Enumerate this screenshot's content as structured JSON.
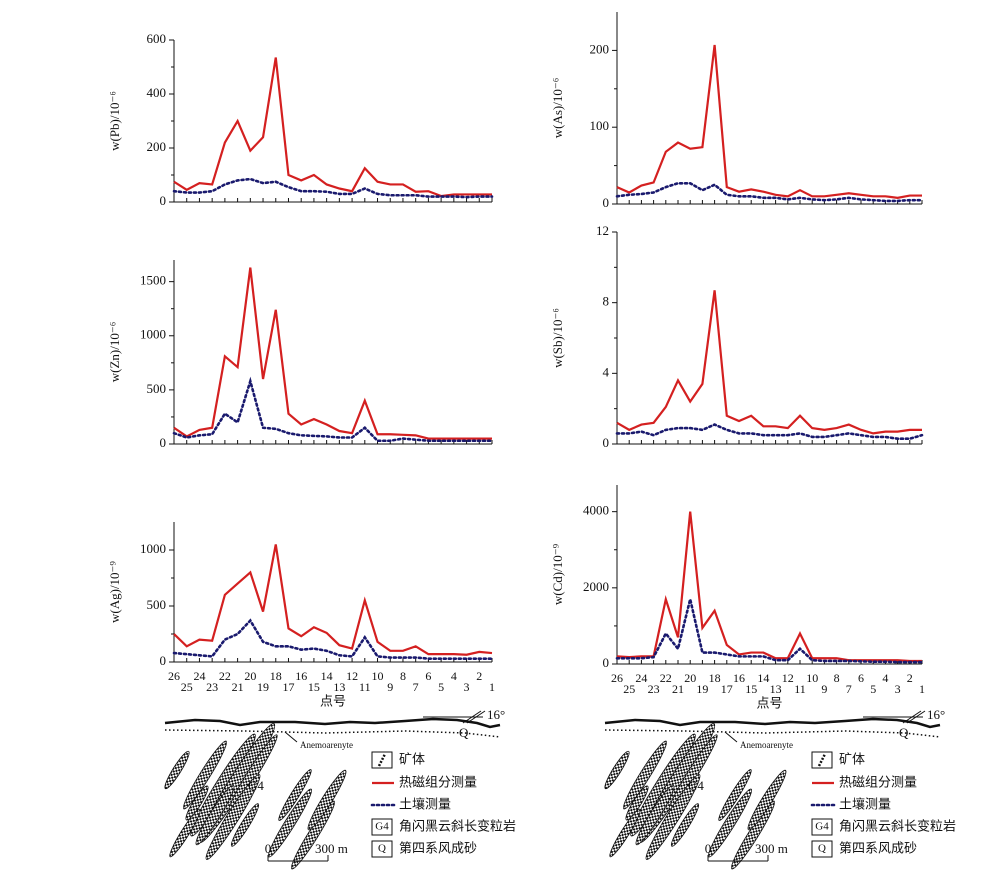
{
  "chart_data": [
    {
      "type": "line",
      "ylabel": "w(Pb)/10⁻⁶",
      "ylim": [
        0,
        600
      ],
      "yticks": [
        0,
        200,
        400,
        600
      ],
      "series": [
        {
          "name": "热磁组分测量",
          "color": "#d42020",
          "line_style": "solid",
          "values": [
            75,
            45,
            70,
            65,
            220,
            300,
            190,
            240,
            535,
            100,
            80,
            100,
            65,
            50,
            40,
            125,
            75,
            65,
            65,
            38,
            40,
            22,
            28,
            28,
            28,
            28
          ]
        },
        {
          "name": "土壤测量",
          "color": "#1a1a6e",
          "line_style": "dotted",
          "values": [
            40,
            35,
            35,
            40,
            65,
            80,
            85,
            70,
            75,
            55,
            40,
            40,
            38,
            30,
            30,
            50,
            30,
            25,
            25,
            25,
            20,
            20,
            20,
            18,
            20,
            20
          ]
        }
      ]
    },
    {
      "type": "line",
      "ylabel": "w(As)/10⁻⁶",
      "ylim": [
        0,
        250
      ],
      "yticks": [
        0,
        100,
        200
      ],
      "series": [
        {
          "name": "热磁组分测量",
          "color": "#d42020",
          "line_style": "solid",
          "values": [
            22,
            15,
            24,
            28,
            68,
            80,
            72,
            74,
            207,
            22,
            16,
            19,
            16,
            12,
            10,
            18,
            10,
            10,
            12,
            14,
            12,
            10,
            10,
            8,
            11,
            11
          ]
        },
        {
          "name": "土壤测量",
          "color": "#1a1a6e",
          "line_style": "dotted",
          "values": [
            10,
            12,
            13,
            15,
            22,
            27,
            27,
            18,
            25,
            12,
            10,
            10,
            8,
            8,
            6,
            8,
            6,
            5,
            6,
            8,
            6,
            5,
            4,
            4,
            5,
            5
          ]
        }
      ]
    },
    {
      "type": "line",
      "ylabel": "w(Zn)/10⁻⁶",
      "ylim": [
        0,
        1700
      ],
      "yticks": [
        0,
        500,
        1000,
        1500
      ],
      "series": [
        {
          "name": "热磁组分测量",
          "color": "#d42020",
          "line_style": "solid",
          "values": [
            150,
            70,
            130,
            150,
            810,
            710,
            1630,
            600,
            1240,
            280,
            180,
            230,
            180,
            120,
            100,
            400,
            90,
            90,
            85,
            80,
            50,
            50,
            50,
            50,
            50,
            50
          ]
        },
        {
          "name": "土壤测量",
          "color": "#1a1a6e",
          "line_style": "dotted",
          "values": [
            100,
            60,
            80,
            90,
            280,
            200,
            580,
            150,
            140,
            100,
            80,
            75,
            70,
            60,
            60,
            150,
            30,
            30,
            50,
            40,
            30,
            30,
            30,
            30,
            30,
            30
          ]
        }
      ]
    },
    {
      "type": "line",
      "ylabel": "w(Sb)/10⁻⁶",
      "ylim": [
        0,
        12
      ],
      "yticks": [
        0,
        4,
        8,
        12
      ],
      "series": [
        {
          "name": "热磁组分测量",
          "color": "#d42020",
          "line_style": "solid",
          "values": [
            1.2,
            0.8,
            1.1,
            1.2,
            2.1,
            3.6,
            2.4,
            3.4,
            8.7,
            1.6,
            1.3,
            1.6,
            1.0,
            1.0,
            0.9,
            1.6,
            0.9,
            0.8,
            0.9,
            1.1,
            0.8,
            0.6,
            0.7,
            0.7,
            0.8,
            0.8
          ]
        },
        {
          "name": "土壤测量",
          "color": "#1a1a6e",
          "line_style": "dotted",
          "values": [
            0.6,
            0.6,
            0.7,
            0.5,
            0.8,
            0.9,
            0.9,
            0.8,
            1.1,
            0.8,
            0.6,
            0.6,
            0.5,
            0.5,
            0.5,
            0.6,
            0.4,
            0.4,
            0.5,
            0.6,
            0.5,
            0.4,
            0.4,
            0.3,
            0.3,
            0.5
          ]
        }
      ]
    },
    {
      "type": "line",
      "ylabel": "w(Ag)/10⁻⁹",
      "xlabel": "点号",
      "ylim": [
        0,
        1250
      ],
      "yticks": [
        0,
        500,
        1000
      ],
      "categories": [
        "26",
        "25",
        "24",
        "23",
        "22",
        "21",
        "20",
        "19",
        "18",
        "17",
        "16",
        "15",
        "14",
        "13",
        "12",
        "11",
        "10",
        "9",
        "8",
        "7",
        "6",
        "5",
        "4",
        "3",
        "2",
        "1"
      ],
      "series": [
        {
          "name": "热磁组分测量",
          "color": "#d42020",
          "line_style": "solid",
          "values": [
            250,
            140,
            200,
            190,
            600,
            700,
            800,
            450,
            1050,
            300,
            230,
            310,
            260,
            150,
            120,
            550,
            180,
            100,
            100,
            140,
            70,
            70,
            70,
            65,
            90,
            80
          ]
        },
        {
          "name": "土壤测量",
          "color": "#1a1a6e",
          "line_style": "dotted",
          "values": [
            80,
            70,
            60,
            50,
            200,
            250,
            370,
            180,
            140,
            140,
            110,
            120,
            100,
            60,
            50,
            220,
            50,
            40,
            40,
            40,
            30,
            30,
            30,
            30,
            30,
            30
          ]
        }
      ]
    },
    {
      "type": "line",
      "ylabel": "w(Cd)/10⁻⁹",
      "xlabel": "点号",
      "ylim": [
        0,
        4700
      ],
      "yticks": [
        0,
        2000,
        4000
      ],
      "categories": [
        "26",
        "25",
        "24",
        "23",
        "22",
        "21",
        "20",
        "19",
        "18",
        "17",
        "16",
        "15",
        "14",
        "13",
        "12",
        "11",
        "10",
        "9",
        "8",
        "7",
        "6",
        "5",
        "4",
        "3",
        "2",
        "1"
      ],
      "series": [
        {
          "name": "热磁组分测量",
          "color": "#d42020",
          "line_style": "solid",
          "values": [
            200,
            180,
            200,
            200,
            1700,
            700,
            4000,
            950,
            1400,
            500,
            250,
            300,
            300,
            150,
            150,
            800,
            150,
            150,
            150,
            100,
            100,
            100,
            100,
            100,
            80,
            80
          ]
        },
        {
          "name": "土壤测量",
          "color": "#1a1a6e",
          "line_style": "dotted",
          "values": [
            150,
            150,
            150,
            180,
            800,
            400,
            1700,
            300,
            300,
            250,
            200,
            200,
            200,
            100,
            100,
            400,
            100,
            80,
            80,
            80,
            70,
            60,
            60,
            50,
            50,
            50
          ]
        }
      ]
    }
  ],
  "sketch": {
    "dip": "16°",
    "formation": "Anemoarenyte",
    "rock_code": "G4",
    "q_code": "Q",
    "scale_zero": "0",
    "scale_length": "300 m",
    "legend": {
      "ore": "矿体",
      "g4_code": "G4",
      "g4": "角闪黑云斜长变粒岩",
      "q_code": "Q",
      "q": "第四系风成砂"
    }
  }
}
